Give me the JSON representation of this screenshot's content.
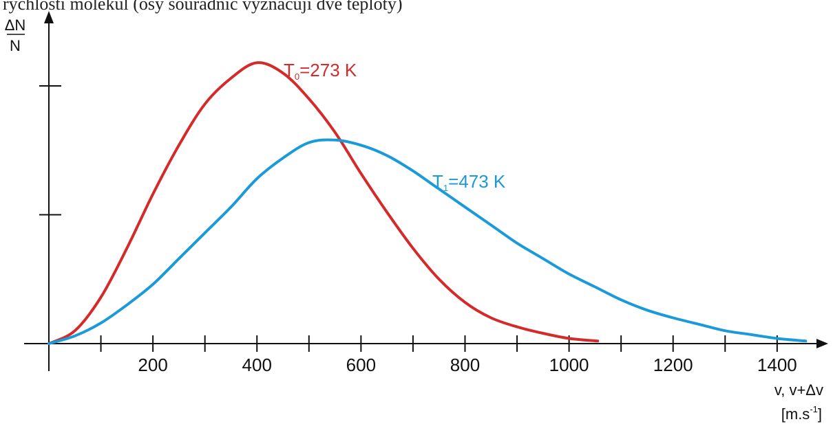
{
  "chart_data": {
    "type": "line",
    "top_text": "rychlostí molekul (osy souřadnic vyznačují dvě teploty)",
    "ylabel": {
      "numerator": "ΔN",
      "denominator": "N"
    },
    "xlabel": {
      "line1": "v, v+Δv",
      "unit_main": "[m.s",
      "unit_sup": "-1",
      "unit_end": "]"
    },
    "xlim": [
      0,
      1530
    ],
    "ylim": [
      0,
      1.08
    ],
    "x_minor_ticks": [
      100,
      200,
      300,
      400,
      500,
      600,
      700,
      800,
      900,
      1000,
      1100,
      1200,
      1300,
      1400
    ],
    "x_tick_labels": [
      200,
      400,
      600,
      800,
      1000,
      1200,
      1400
    ],
    "y_ticks": [
      0.5,
      1.0
    ],
    "grid": false,
    "legend": "inline",
    "series": [
      {
        "name": "T0=273 K",
        "label_main": "T",
        "label_sub": "0",
        "label_rest": "=273 K",
        "color": "#d42a2a",
        "label_at": [
          910,
          1.05
        ],
        "x": [
          0,
          50,
          100,
          150,
          200,
          250,
          300,
          350,
          400,
          450,
          500,
          550,
          600,
          650,
          700,
          750,
          800,
          850,
          900,
          950,
          1000,
          1055
        ],
        "y": [
          0,
          0.05,
          0.18,
          0.37,
          0.58,
          0.77,
          0.93,
          1.03,
          1.09,
          1.05,
          0.95,
          0.82,
          0.66,
          0.51,
          0.37,
          0.25,
          0.16,
          0.1,
          0.065,
          0.04,
          0.02,
          0.01
        ]
      },
      {
        "name": "T1=473 K",
        "label_main": "T",
        "label_sub": "1",
        "label_rest": "=473 K",
        "color": "#1a9ad8",
        "label_at": [
          1080,
          0.62
        ],
        "x": [
          0,
          50,
          100,
          150,
          200,
          250,
          300,
          350,
          400,
          450,
          500,
          550,
          600,
          650,
          700,
          750,
          800,
          850,
          900,
          950,
          1000,
          1050,
          1100,
          1150,
          1200,
          1250,
          1300,
          1350,
          1400,
          1455
        ],
        "y": [
          0,
          0.03,
          0.08,
          0.15,
          0.23,
          0.33,
          0.43,
          0.53,
          0.64,
          0.72,
          0.78,
          0.79,
          0.77,
          0.73,
          0.67,
          0.6,
          0.53,
          0.46,
          0.39,
          0.33,
          0.27,
          0.22,
          0.17,
          0.13,
          0.1,
          0.075,
          0.05,
          0.035,
          0.02,
          0.01
        ]
      }
    ]
  }
}
